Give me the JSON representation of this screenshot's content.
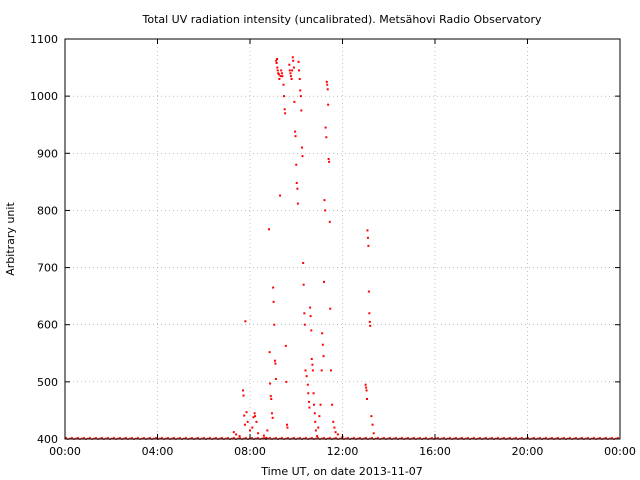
{
  "chart_data": {
    "type": "scatter",
    "title": "Total UV radiation intensity (uncalibrated). Metsähovi Radio Observatory",
    "xlabel": "Time UT, on date 2013-11-07",
    "ylabel": "Arbitrary unit",
    "x_unit": "hours UT",
    "xlim": [
      0,
      24
    ],
    "ylim": [
      400,
      1100
    ],
    "x_ticks": [
      0,
      4,
      8,
      12,
      16,
      20,
      24
    ],
    "x_tick_labels": [
      "00:00",
      "04:00",
      "08:00",
      "12:00",
      "16:00",
      "20:00",
      "00:00"
    ],
    "y_ticks": [
      400,
      500,
      600,
      700,
      800,
      900,
      1000,
      1100
    ],
    "y_tick_labels": [
      "400",
      "500",
      "600",
      "700",
      "800",
      "900",
      "1000",
      "1100"
    ],
    "grid": true,
    "marker_color": "#ff0000",
    "baseline": {
      "y": 401,
      "x_range": [
        0,
        24
      ],
      "description_value": 401
    },
    "series": [
      {
        "values_xy": [
          [
            7.3,
            412
          ],
          [
            7.4,
            408
          ],
          [
            7.55,
            405
          ],
          [
            7.7,
            485
          ],
          [
            7.72,
            476
          ],
          [
            7.75,
            441
          ],
          [
            7.78,
            425
          ],
          [
            7.8,
            606
          ],
          [
            7.85,
            447
          ],
          [
            7.9,
            430
          ],
          [
            8.0,
            415
          ],
          [
            8.1,
            420
          ],
          [
            8.15,
            438
          ],
          [
            8.2,
            445
          ],
          [
            8.22,
            440
          ],
          [
            8.28,
            430
          ],
          [
            8.35,
            410
          ],
          [
            8.6,
            406
          ],
          [
            8.7,
            402
          ],
          [
            8.75,
            415
          ],
          [
            8.82,
            767
          ],
          [
            8.85,
            552
          ],
          [
            8.87,
            497
          ],
          [
            8.9,
            475
          ],
          [
            8.92,
            470
          ],
          [
            8.95,
            445
          ],
          [
            8.98,
            437
          ],
          [
            9.0,
            665
          ],
          [
            9.02,
            640
          ],
          [
            9.05,
            600
          ],
          [
            9.08,
            537
          ],
          [
            9.1,
            532
          ],
          [
            9.12,
            505
          ],
          [
            9.13,
            1062
          ],
          [
            9.15,
            1058
          ],
          [
            9.17,
            1065
          ],
          [
            9.18,
            1050
          ],
          [
            9.2,
            1045
          ],
          [
            9.22,
            1040
          ],
          [
            9.25,
            1038
          ],
          [
            9.27,
            1030
          ],
          [
            9.3,
            826
          ],
          [
            9.32,
            1035
          ],
          [
            9.35,
            1045
          ],
          [
            9.38,
            1040
          ],
          [
            9.4,
            1035
          ],
          [
            9.45,
            1020
          ],
          [
            9.47,
            1000
          ],
          [
            9.5,
            977
          ],
          [
            9.52,
            970
          ],
          [
            9.55,
            563
          ],
          [
            9.57,
            500
          ],
          [
            9.6,
            425
          ],
          [
            9.62,
            420
          ],
          [
            9.7,
            1055
          ],
          [
            9.72,
            1045
          ],
          [
            9.75,
            1040
          ],
          [
            9.77,
            1035
          ],
          [
            9.8,
            1030
          ],
          [
            9.82,
            1045
          ],
          [
            9.85,
            1068
          ],
          [
            9.87,
            1062
          ],
          [
            9.9,
            1050
          ],
          [
            9.92,
            990
          ],
          [
            9.95,
            938
          ],
          [
            9.97,
            930
          ],
          [
            10.0,
            880
          ],
          [
            10.02,
            848
          ],
          [
            10.05,
            838
          ],
          [
            10.07,
            812
          ],
          [
            10.1,
            1060
          ],
          [
            10.12,
            1045
          ],
          [
            10.15,
            1030
          ],
          [
            10.17,
            1010
          ],
          [
            10.2,
            1000
          ],
          [
            10.22,
            975
          ],
          [
            10.25,
            910
          ],
          [
            10.27,
            895
          ],
          [
            10.3,
            708
          ],
          [
            10.32,
            670
          ],
          [
            10.35,
            620
          ],
          [
            10.37,
            600
          ],
          [
            10.4,
            520
          ],
          [
            10.45,
            510
          ],
          [
            10.5,
            495
          ],
          [
            10.52,
            480
          ],
          [
            10.55,
            465
          ],
          [
            10.57,
            455
          ],
          [
            10.6,
            630
          ],
          [
            10.62,
            615
          ],
          [
            10.65,
            590
          ],
          [
            10.67,
            540
          ],
          [
            10.7,
            530
          ],
          [
            10.72,
            520
          ],
          [
            10.75,
            480
          ],
          [
            10.77,
            460
          ],
          [
            10.8,
            445
          ],
          [
            10.82,
            430
          ],
          [
            10.85,
            415
          ],
          [
            10.9,
            405
          ],
          [
            10.95,
            420
          ],
          [
            11.0,
            440
          ],
          [
            11.05,
            460
          ],
          [
            11.1,
            520
          ],
          [
            11.12,
            585
          ],
          [
            11.15,
            565
          ],
          [
            11.18,
            545
          ],
          [
            11.2,
            675
          ],
          [
            11.22,
            818
          ],
          [
            11.25,
            800
          ],
          [
            11.27,
            945
          ],
          [
            11.3,
            928
          ],
          [
            11.32,
            1025
          ],
          [
            11.34,
            1020
          ],
          [
            11.36,
            1012
          ],
          [
            11.38,
            985
          ],
          [
            11.4,
            890
          ],
          [
            11.42,
            885
          ],
          [
            11.45,
            780
          ],
          [
            11.47,
            628
          ],
          [
            11.5,
            520
          ],
          [
            11.55,
            460
          ],
          [
            11.6,
            430
          ],
          [
            11.65,
            420
          ],
          [
            11.7,
            412
          ],
          [
            11.8,
            408
          ],
          [
            12.0,
            404
          ],
          [
            13.0,
            495
          ],
          [
            13.02,
            490
          ],
          [
            13.04,
            485
          ],
          [
            13.06,
            470
          ],
          [
            13.08,
            765
          ],
          [
            13.1,
            752
          ],
          [
            13.12,
            738
          ],
          [
            13.14,
            658
          ],
          [
            13.16,
            620
          ],
          [
            13.18,
            605
          ],
          [
            13.2,
            598
          ],
          [
            13.25,
            440
          ],
          [
            13.3,
            425
          ],
          [
            13.35,
            410
          ]
        ]
      }
    ]
  }
}
